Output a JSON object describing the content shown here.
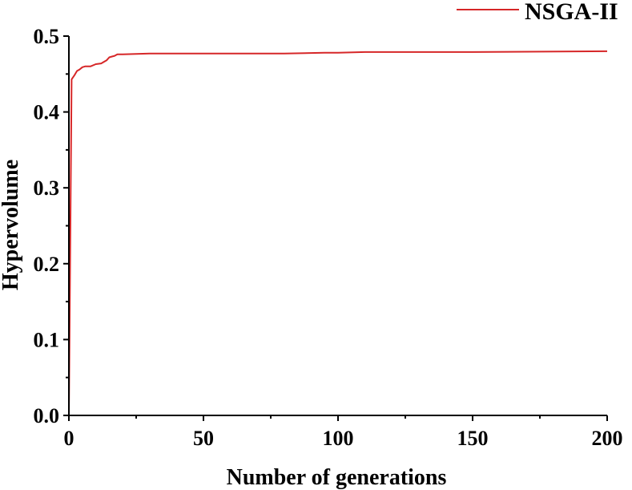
{
  "chart_data": {
    "type": "line",
    "xlabel": "Number of generations",
    "ylabel": "Hypervolume",
    "xlim": [
      0,
      200
    ],
    "ylim": [
      0,
      0.5
    ],
    "x_ticks": [
      0,
      50,
      100,
      150,
      200
    ],
    "x_tick_labels": [
      "0",
      "50",
      "100",
      "150",
      "200"
    ],
    "y_ticks": [
      0.0,
      0.1,
      0.2,
      0.3,
      0.4,
      0.5
    ],
    "y_tick_labels": [
      "0.0",
      "0.1",
      "0.2",
      "0.3",
      "0.4",
      "0.5"
    ],
    "grid": false,
    "legend_position": "top-right",
    "series": [
      {
        "name": "NSGA-II",
        "color": "#d62728",
        "x": [
          0,
          1,
          2,
          3,
          4,
          5,
          6,
          8,
          10,
          12,
          14,
          15,
          16,
          17,
          18,
          20,
          30,
          50,
          80,
          95,
          100,
          110,
          150,
          200
        ],
        "y": [
          0.0,
          0.443,
          0.448,
          0.454,
          0.456,
          0.459,
          0.46,
          0.46,
          0.463,
          0.464,
          0.468,
          0.472,
          0.473,
          0.474,
          0.476,
          0.476,
          0.477,
          0.477,
          0.477,
          0.478,
          0.478,
          0.479,
          0.479,
          0.48
        ]
      }
    ]
  }
}
